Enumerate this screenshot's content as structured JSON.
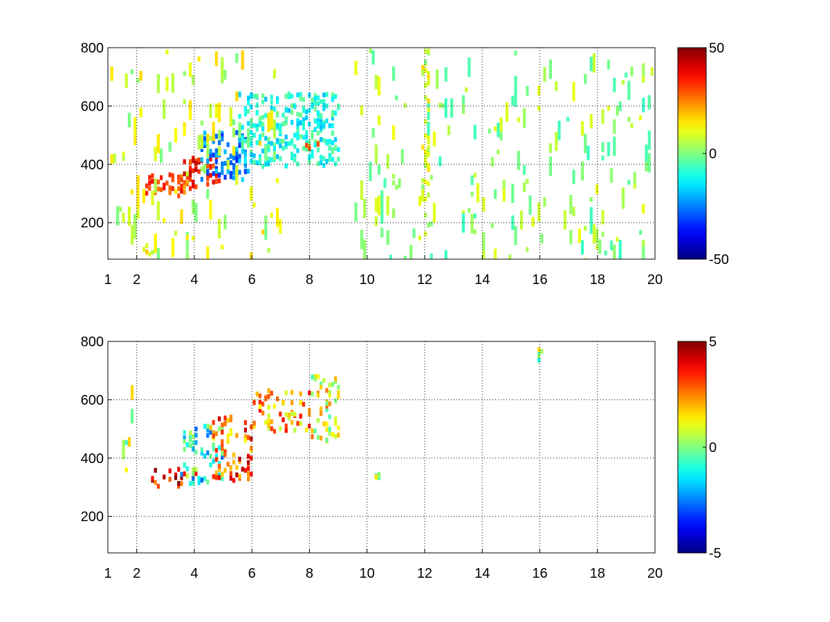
{
  "chart_data": [
    {
      "type": "heatmap",
      "title": "",
      "xlabel": "",
      "ylabel": "",
      "xlim": [
        1,
        20
      ],
      "ylim": [
        75,
        800
      ],
      "x_ticks": [
        1,
        2,
        4,
        6,
        8,
        10,
        12,
        14,
        16,
        18,
        20
      ],
      "y_ticks": [
        200,
        400,
        600,
        800
      ],
      "grid": true,
      "colormap": "jet",
      "colorbar": {
        "range": [
          -50,
          50
        ],
        "ticks": [
          50,
          0,
          -50
        ]
      },
      "features": [
        {
          "x_range": [
            2.0,
            3.8
          ],
          "y_range": [
            300,
            380
          ],
          "value_approx": 30
        },
        {
          "x_range": [
            3.5,
            4.8
          ],
          "y_range": [
            330,
            430
          ],
          "value_approx": 35
        },
        {
          "x_range": [
            4.2,
            5.8
          ],
          "y_range": [
            350,
            520
          ],
          "value_approx": -25
        },
        {
          "x_range": [
            5.5,
            9.0
          ],
          "y_range": [
            400,
            650
          ],
          "value_approx": -10
        },
        {
          "x_range": [
            7.8,
            8.3
          ],
          "y_range": [
            460,
            500
          ],
          "value_approx": 25
        },
        {
          "x_range": [
            2.2,
            2.6
          ],
          "y_range": [
            100,
            130
          ],
          "value_approx": 12
        },
        {
          "x_range": [
            1.0,
            7.0
          ],
          "y_range": [
            75,
            800
          ],
          "value_approx": 8,
          "note": "scattered noise"
        },
        {
          "x_range": [
            9.5,
            20.0
          ],
          "y_range": [
            75,
            800
          ],
          "value_approx": 2,
          "note": "sparse vertical streaks"
        },
        {
          "x_range": [
            11.9,
            12.1
          ],
          "y_range": [
            200,
            800
          ],
          "value_approx": 8
        }
      ]
    },
    {
      "type": "heatmap",
      "title": "",
      "xlabel": "",
      "ylabel": "",
      "xlim": [
        1,
        20
      ],
      "ylim": [
        75,
        800
      ],
      "x_ticks": [
        1,
        2,
        4,
        6,
        8,
        10,
        12,
        14,
        16,
        18,
        20
      ],
      "y_ticks": [
        200,
        400,
        600,
        800
      ],
      "grid": true,
      "colormap": "jet",
      "colorbar": {
        "range": [
          -5,
          5
        ],
        "ticks": [
          5,
          0,
          -5
        ]
      },
      "features": [
        {
          "x_range": [
            2.5,
            4.0
          ],
          "y_range": [
            310,
            370
          ],
          "value_approx": 4
        },
        {
          "x_range": [
            3.5,
            5.0
          ],
          "y_range": [
            320,
            520
          ],
          "value_approx": -1
        },
        {
          "x_range": [
            4.5,
            6.0
          ],
          "y_range": [
            330,
            560
          ],
          "value_approx": 3
        },
        {
          "x_range": [
            6.0,
            8.0
          ],
          "y_range": [
            500,
            640
          ],
          "value_approx": 2
        },
        {
          "x_range": [
            8.0,
            9.0
          ],
          "y_range": [
            460,
            700
          ],
          "value_approx": 1
        },
        {
          "x_range": [
            1.5,
            2.0
          ],
          "y_range": [
            300,
            770
          ],
          "value_approx": 0,
          "note": "sparse streaks"
        },
        {
          "x_range": [
            10.2,
            10.4
          ],
          "y_range": [
            340,
            360
          ],
          "value_approx": 0
        },
        {
          "x_range": [
            15.9,
            16.1
          ],
          "y_range": [
            740,
            800
          ],
          "value_approx": 0.5
        }
      ]
    }
  ]
}
